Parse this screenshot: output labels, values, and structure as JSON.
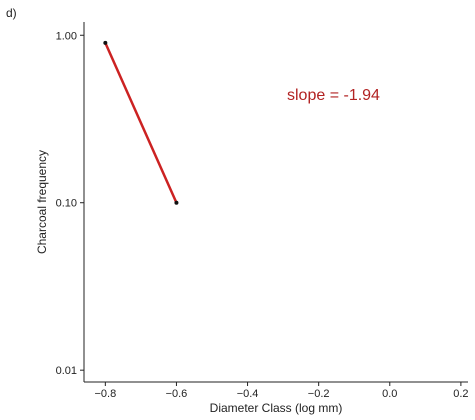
{
  "panel_label": "d)",
  "chart_data": {
    "type": "line",
    "xlabel": "Diameter Class (log mm)",
    "ylabel": "Charcoal frequency",
    "y_scale": "log",
    "xlim": [
      -0.86,
      0.22
    ],
    "ylim": [
      0.0085,
      1.2
    ],
    "x_ticks": [
      -0.8,
      -0.6,
      -0.4,
      -0.2,
      0.0,
      0.2
    ],
    "x_tick_labels": [
      "−0.8",
      "−0.6",
      "−0.4",
      "−0.2",
      "0.0",
      "0.2"
    ],
    "y_ticks": [
      0.01,
      0.1,
      1.0
    ],
    "y_tick_labels": [
      "0.01",
      "0.10",
      "1.00"
    ],
    "points": [
      {
        "x": -0.8,
        "y": 0.9
      },
      {
        "x": -0.6,
        "y": 0.1
      }
    ],
    "line_color": "#cc2222",
    "point_color": "#111111",
    "annotation": "slope = -1.94",
    "annotation_color": "#b22222"
  }
}
